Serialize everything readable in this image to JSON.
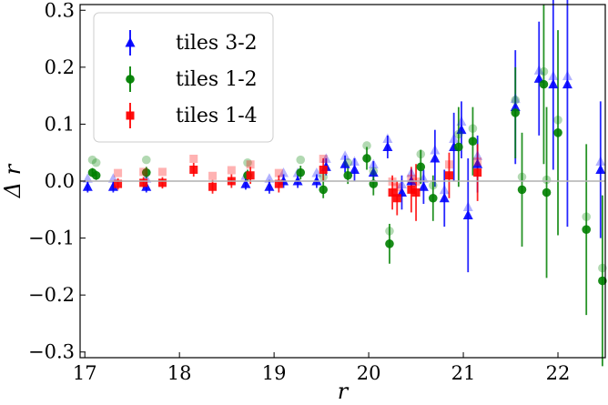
{
  "chart_data": {
    "type": "scatter",
    "xlabel": "r",
    "ylabel": "Δ r",
    "xlim": [
      16.95,
      22.5
    ],
    "ylim": [
      -0.31,
      0.31
    ],
    "xticks": [
      "17",
      "18",
      "19",
      "20",
      "21",
      "22"
    ],
    "xtick_values": [
      17,
      18,
      19,
      20,
      21,
      22
    ],
    "yticks": [
      "−0.3",
      "−0.2",
      "−0.1",
      "0.0",
      "0.1",
      "0.2",
      "0.3"
    ],
    "ytick_values": [
      -0.3,
      -0.2,
      -0.1,
      0.0,
      0.1,
      0.2,
      0.3
    ],
    "reference_line": 0.0,
    "legend": {
      "placement": "top-left",
      "entries": [
        "tiles 3-2",
        "tiles 1-2",
        "tiles 1-4"
      ]
    },
    "series": [
      {
        "name": "tiles 3-2",
        "marker": "triangle",
        "color": "#0000ff",
        "points": [
          [
            17.03,
            -0.01,
            0.01
          ],
          [
            17.3,
            -0.01,
            0.01
          ],
          [
            17.65,
            -0.01,
            0.01
          ],
          [
            18.7,
            -0.005,
            0.01
          ],
          [
            18.95,
            -0.01,
            0.012
          ],
          [
            19.1,
            0.0,
            0.012
          ],
          [
            19.25,
            0.0,
            0.012
          ],
          [
            19.45,
            0.0,
            0.012
          ],
          [
            19.55,
            0.025,
            0.015
          ],
          [
            19.75,
            0.03,
            0.015
          ],
          [
            19.85,
            0.02,
            0.02
          ],
          [
            20.05,
            0.015,
            0.02
          ],
          [
            20.2,
            0.06,
            0.02
          ],
          [
            20.35,
            -0.02,
            0.03
          ],
          [
            20.45,
            0.0,
            0.02
          ],
          [
            20.58,
            -0.01,
            0.03
          ],
          [
            20.7,
            0.04,
            0.05
          ],
          [
            20.8,
            -0.03,
            0.05
          ],
          [
            20.9,
            0.06,
            0.06
          ],
          [
            20.98,
            0.09,
            0.05
          ],
          [
            21.05,
            -0.06,
            0.1
          ],
          [
            21.15,
            0.03,
            0.05
          ],
          [
            21.55,
            0.13,
            0.1
          ],
          [
            21.8,
            0.18,
            0.1
          ],
          [
            21.95,
            0.17,
            0.15
          ],
          [
            22.1,
            0.17,
            0.25
          ],
          [
            22.45,
            0.02,
            0.12
          ]
        ]
      },
      {
        "name": "tiles 1-2",
        "marker": "circle",
        "color": "#008000",
        "points": [
          [
            17.08,
            0.015,
            0.008
          ],
          [
            17.12,
            0.01,
            0.008
          ],
          [
            17.65,
            0.015,
            0.01
          ],
          [
            18.72,
            0.01,
            0.01
          ],
          [
            19.28,
            0.015,
            0.012
          ],
          [
            19.52,
            -0.015,
            0.015
          ],
          [
            19.78,
            0.01,
            0.015
          ],
          [
            19.98,
            0.04,
            0.02
          ],
          [
            20.05,
            -0.005,
            0.02
          ],
          [
            20.22,
            -0.11,
            0.035
          ],
          [
            20.55,
            0.025,
            0.03
          ],
          [
            20.68,
            -0.03,
            0.04
          ],
          [
            20.95,
            0.06,
            0.07
          ],
          [
            21.1,
            0.07,
            0.06
          ],
          [
            21.55,
            0.12,
            0.08
          ],
          [
            21.62,
            -0.015,
            0.1
          ],
          [
            21.85,
            0.17,
            0.14
          ],
          [
            21.88,
            -0.02,
            0.15
          ],
          [
            22.0,
            0.085,
            0.18
          ],
          [
            22.3,
            -0.085,
            0.15
          ],
          [
            22.47,
            -0.175,
            0.15
          ]
        ]
      },
      {
        "name": "tiles 1-4",
        "marker": "square",
        "color": "#ff0000",
        "points": [
          [
            17.35,
            -0.005,
            0.01
          ],
          [
            17.62,
            -0.003,
            0.01
          ],
          [
            17.82,
            -0.003,
            0.01
          ],
          [
            18.15,
            0.02,
            0.012
          ],
          [
            18.35,
            -0.01,
            0.012
          ],
          [
            18.55,
            0.0,
            0.012
          ],
          [
            18.75,
            0.01,
            0.015
          ],
          [
            19.05,
            -0.005,
            0.015
          ],
          [
            19.52,
            0.02,
            0.02
          ],
          [
            20.25,
            -0.02,
            0.03
          ],
          [
            20.3,
            -0.03,
            0.03
          ],
          [
            20.45,
            -0.015,
            0.04
          ],
          [
            20.5,
            -0.02,
            0.05
          ],
          [
            20.85,
            0.01,
            0.04
          ],
          [
            21.15,
            0.015,
            0.05
          ]
        ]
      }
    ]
  }
}
